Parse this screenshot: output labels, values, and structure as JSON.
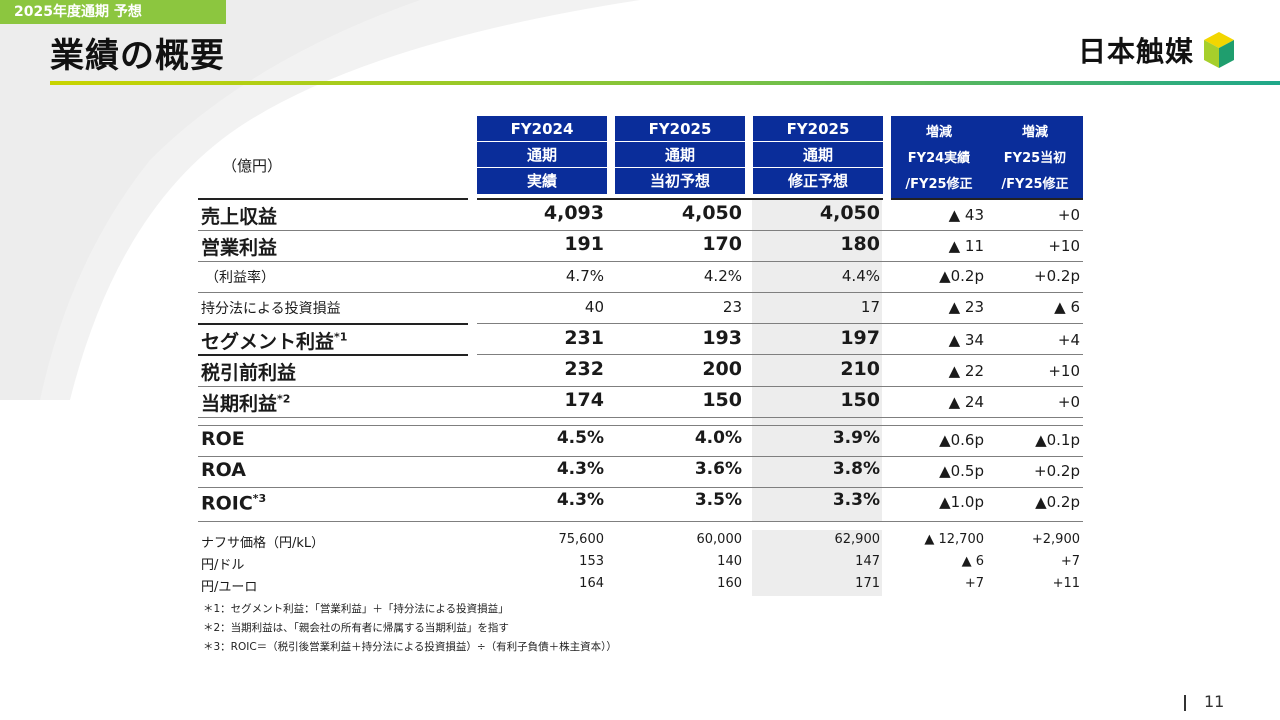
{
  "header": {
    "section_tag": "2025年度通期 予想",
    "title": "業績の概要",
    "company_name": "日本触媒",
    "logo_icon": "cube-logo-icon"
  },
  "colors": {
    "accent_green": "#8cc63f",
    "header_blue": "#0a2d9a",
    "shade_gray": "#ededed"
  },
  "table": {
    "unit": "（億円）",
    "columns": [
      {
        "lines": [
          "FY2024",
          "通期",
          "実績"
        ]
      },
      {
        "lines": [
          "FY2025",
          "通期",
          "当初予想"
        ]
      },
      {
        "lines": [
          "FY2025",
          "通期",
          "修正予想"
        ]
      }
    ],
    "diff_columns": [
      {
        "lines": [
          "増減",
          "FY24実績",
          "/FY25修正"
        ]
      },
      {
        "lines": [
          "増減",
          "FY25当初",
          "/FY25修正"
        ]
      }
    ],
    "rows": [
      {
        "label": "売上収益",
        "sup": "",
        "fy2024": "4,093",
        "fy2025_initial": "4,050",
        "fy2025_revised": "4,050",
        "diff1": "▲ 43",
        "diff2": "+0"
      },
      {
        "label": "営業利益",
        "sup": "",
        "fy2024": "191",
        "fy2025_initial": "170",
        "fy2025_revised": "180",
        "diff1": "▲ 11",
        "diff2": "+10"
      },
      {
        "label": "（利益率）",
        "sup": "",
        "fy2024": "4.7%",
        "fy2025_initial": "4.2%",
        "fy2025_revised": "4.4%",
        "diff1": "▲0.2p",
        "diff2": "+0.2p"
      },
      {
        "label": "持分法による投資損益",
        "sup": "",
        "fy2024": "40",
        "fy2025_initial": "23",
        "fy2025_revised": "17",
        "diff1": "▲ 23",
        "diff2": "▲ 6"
      },
      {
        "label": "セグメント利益",
        "sup": "*1",
        "fy2024": "231",
        "fy2025_initial": "193",
        "fy2025_revised": "197",
        "diff1": "▲ 34",
        "diff2": "+4"
      },
      {
        "label": "税引前利益",
        "sup": "",
        "fy2024": "232",
        "fy2025_initial": "200",
        "fy2025_revised": "210",
        "diff1": "▲ 22",
        "diff2": "+10"
      },
      {
        "label": "当期利益",
        "sup": "*2",
        "fy2024": "174",
        "fy2025_initial": "150",
        "fy2025_revised": "150",
        "diff1": "▲ 24",
        "diff2": "+0"
      },
      {
        "label": "ROE",
        "sup": "",
        "fy2024": "4.5%",
        "fy2025_initial": "4.0%",
        "fy2025_revised": "3.9%",
        "diff1": "▲0.6p",
        "diff2": "▲0.1p"
      },
      {
        "label": "ROA",
        "sup": "",
        "fy2024": "4.3%",
        "fy2025_initial": "3.6%",
        "fy2025_revised": "3.8%",
        "diff1": "▲0.5p",
        "diff2": "+0.2p"
      },
      {
        "label": "ROIC",
        "sup": "*3",
        "fy2024": "4.3%",
        "fy2025_initial": "3.5%",
        "fy2025_revised": "3.3%",
        "diff1": "▲1.0p",
        "diff2": "▲0.2p"
      },
      {
        "label": "ナフサ価格（円/kL）",
        "sup": "",
        "fy2024": "75,600",
        "fy2025_initial": "60,000",
        "fy2025_revised": "62,900",
        "diff1": "▲ 12,700",
        "diff2": "+2,900"
      },
      {
        "label": "円/ドル",
        "sup": "",
        "fy2024": "153",
        "fy2025_initial": "140",
        "fy2025_revised": "147",
        "diff1": "▲ 6",
        "diff2": "+7"
      },
      {
        "label": "円/ユーロ",
        "sup": "",
        "fy2024": "164",
        "fy2025_initial": "160",
        "fy2025_revised": "171",
        "diff1": "+7",
        "diff2": "+11"
      }
    ]
  },
  "notes": [
    "＊1：セグメント利益：「営業利益」＋「持分法による投資損益」",
    "＊2：当期利益は、「親会社の所有者に帰属する当期利益」を指す",
    "＊3：ROIC＝（税引後営業利益＋持分法による投資損益）÷（有利子負債＋株主資本））"
  ],
  "page_number": "11"
}
